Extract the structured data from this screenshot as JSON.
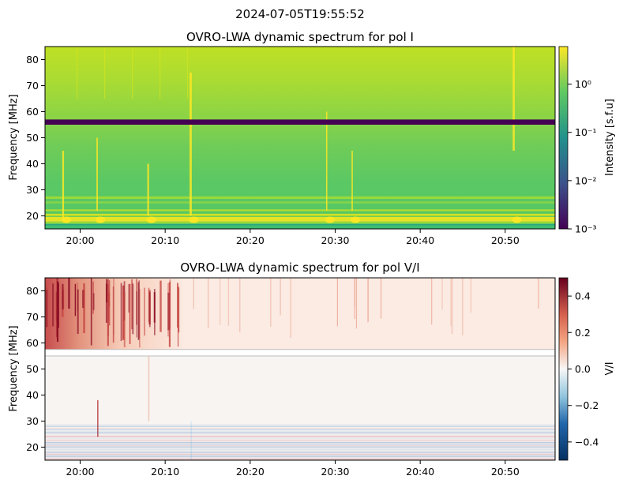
{
  "figure": {
    "suptitle": "2024-07-05T19:55:52"
  },
  "chart_data": [
    {
      "type": "heatmap",
      "title": "OVRO-LWA dynamic spectrum for pol I",
      "xlabel": "",
      "ylabel": "Frequency [MHz]",
      "x_range": [
        "19:55:52",
        "20:55:52"
      ],
      "x_ticks": [
        "20:00",
        "20:10",
        "20:20",
        "20:30",
        "20:40",
        "20:50"
      ],
      "ylim": [
        15,
        85
      ],
      "y_ticks": [
        20,
        30,
        40,
        50,
        60,
        70,
        80
      ],
      "colorbar": {
        "label": "Intensity [s.f.u]",
        "scale": "log",
        "range": [
          0.001,
          6
        ],
        "tick_labels": [
          "10⁰",
          "10⁻¹",
          "10⁻²",
          "10⁻³"
        ],
        "tick_values": [
          1,
          0.1,
          0.01,
          0.001
        ],
        "colormap": "viridis",
        "colors": [
          "#440154",
          "#3b528b",
          "#21918c",
          "#5ec962",
          "#fde725"
        ]
      },
      "features": {
        "background_low_freq_MHz": [
          15,
          28
        ],
        "flagged_band_MHz": [
          55,
          57
        ],
        "bursts": [
          "19:58",
          "20:02",
          "20:08",
          "20:13",
          "20:29",
          "20:32",
          "20:51"
        ]
      }
    },
    {
      "type": "heatmap",
      "title": "OVRO-LWA dynamic spectrum for pol V/I",
      "xlabel": "",
      "ylabel": "Frequency [MHz]",
      "x_range": [
        "19:55:52",
        "20:55:52"
      ],
      "x_ticks": [
        "20:00",
        "20:10",
        "20:20",
        "20:30",
        "20:40",
        "20:50"
      ],
      "ylim": [
        15,
        85
      ],
      "y_ticks": [
        20,
        30,
        40,
        50,
        60,
        70,
        80
      ],
      "colorbar": {
        "label": "V/I",
        "scale": "linear",
        "range": [
          -0.5,
          0.5
        ],
        "tick_labels": [
          "0.4",
          "0.2",
          "0.0",
          "−0.2",
          "−0.4"
        ],
        "tick_values": [
          0.4,
          0.2,
          0.0,
          -0.2,
          -0.4
        ],
        "colormap": "RdBu_r",
        "colors": [
          "#053061",
          "#4393c3",
          "#f7f7f7",
          "#f4a582",
          "#67001f"
        ]
      },
      "features": {
        "flagged_band_MHz": [
          55,
          57.5
        ],
        "strong_positive_region": {
          "time": [
            "19:55:52",
            "20:12"
          ],
          "freq_MHz": [
            57.5,
            85
          ]
        },
        "noise_band_MHz": [
          15,
          29
        ]
      }
    }
  ]
}
